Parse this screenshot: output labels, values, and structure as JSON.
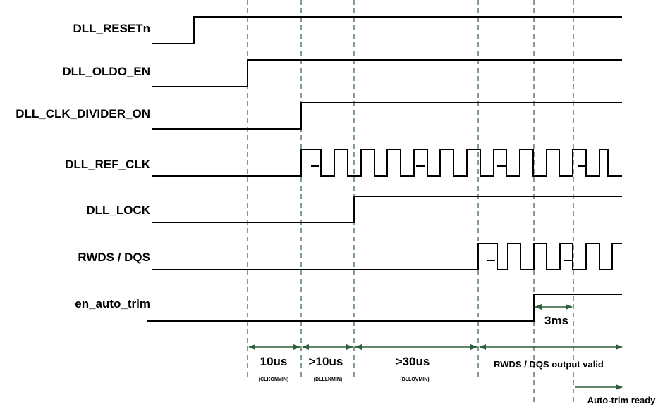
{
  "signals": [
    {
      "id": "dll-resetn",
      "label": "DLL_RESETn"
    },
    {
      "id": "dll-oldo-en",
      "label": "DLL_OLDO_EN"
    },
    {
      "id": "dll-clk-divider-on",
      "label": "DLL_CLK_DIVIDER_ON"
    },
    {
      "id": "dll-ref-clk",
      "label": "DLL_REF_CLK"
    },
    {
      "id": "dll-lock",
      "label": "DLL_LOCK"
    },
    {
      "id": "rwds-dqs",
      "label": "RWDS / DQS"
    },
    {
      "id": "en-auto-trim",
      "label": "en_auto_trim"
    }
  ],
  "intervals": {
    "clkonmin": {
      "label": "10us",
      "sublabel": "(CLKONMIN)"
    },
    "dlllkmin": {
      "label": ">10us",
      "sublabel": "(DLLLKMIN)"
    },
    "dllovmin": {
      "label": ">30us",
      "sublabel": "(DLLOVMIN)"
    },
    "rwds_valid": {
      "label": "RWDS / DQS output valid"
    },
    "trim_delay": {
      "label": "3ms"
    },
    "auto_trim_ready": {
      "label": "Auto-trim ready"
    }
  },
  "colors": {
    "guide": "#2f5f3a",
    "wave": "#000000"
  }
}
